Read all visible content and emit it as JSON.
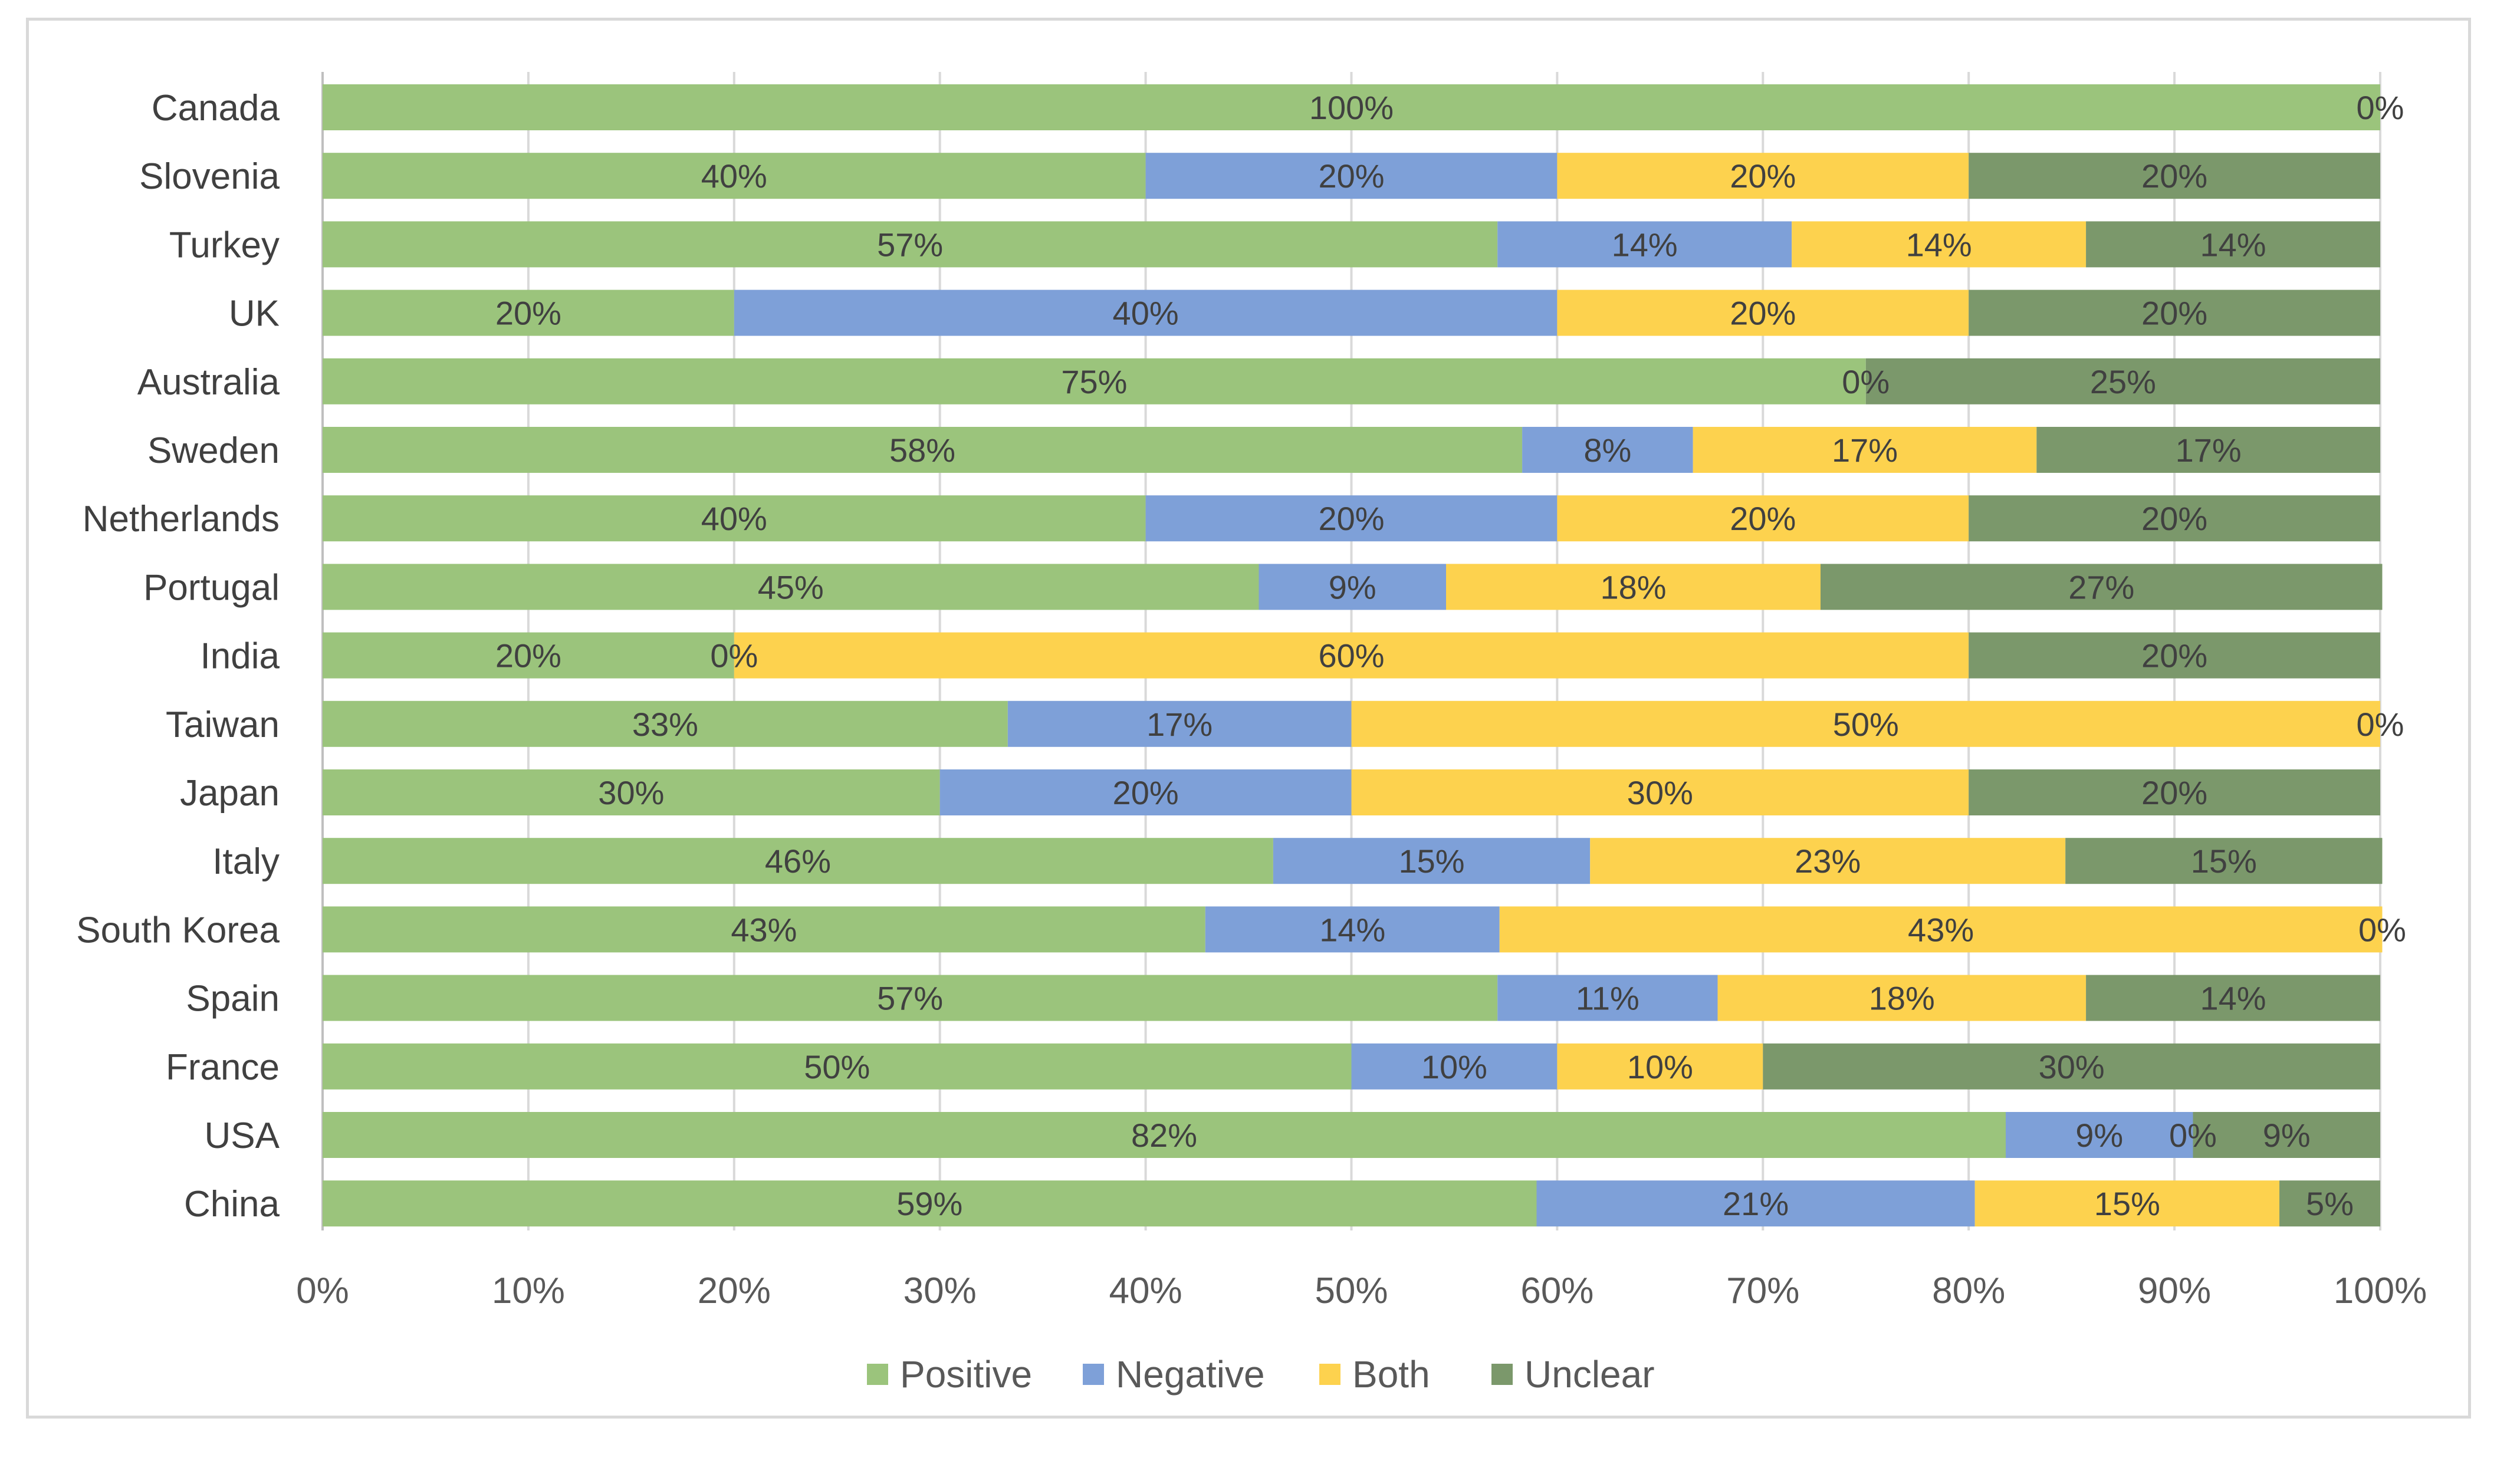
{
  "chart_data": {
    "type": "bar",
    "orientation": "horizontal",
    "stacked": true,
    "percent_stacked": true,
    "title": "",
    "xlabel": "",
    "ylabel": "",
    "xlim": [
      0,
      100
    ],
    "x_ticks": [
      0,
      10,
      20,
      30,
      40,
      50,
      60,
      70,
      80,
      90,
      100
    ],
    "x_tick_labels": [
      "0%",
      "10%",
      "20%",
      "30%",
      "40%",
      "50%",
      "60%",
      "70%",
      "80%",
      "90%",
      "100%"
    ],
    "grid": true,
    "legend_position": "bottom",
    "categories": [
      "Canada",
      "Slovenia",
      "Turkey",
      "UK",
      "Australia",
      "Sweden",
      "Netherlands",
      "Portugal",
      "India",
      "Taiwan",
      "Japan",
      "Italy",
      "South Korea",
      "Spain",
      "France",
      "USA",
      "China"
    ],
    "series": [
      {
        "name": "Positive",
        "color": "#9bc47c",
        "values": [
          100,
          40,
          57.1,
          20,
          75,
          58.3,
          40,
          45.5,
          20,
          33.3,
          30,
          46.2,
          42.9,
          57.1,
          50,
          81.8,
          59
        ],
        "labels": [
          "100%",
          "40%",
          "57%",
          "20%",
          "75%",
          "58%",
          "40%",
          "45%",
          "20%",
          "33%",
          "30%",
          "46%",
          "43%",
          "57%",
          "50%",
          "82%",
          "59%"
        ]
      },
      {
        "name": "Negative",
        "color": "#7ea0d8",
        "values": [
          0,
          20,
          14.3,
          40,
          0,
          8.3,
          20,
          9.1,
          0,
          16.7,
          20,
          15.4,
          14.3,
          10.7,
          10,
          9.1,
          21.3
        ],
        "labels": [
          "",
          "20%",
          "14%",
          "40%",
          "",
          "8%",
          "20%",
          "9%",
          "0%",
          "17%",
          "20%",
          "15%",
          "14%",
          "11%",
          "10%",
          "9%",
          "21%"
        ]
      },
      {
        "name": "Both",
        "color": "#fdd24e",
        "values": [
          0,
          20,
          14.3,
          20,
          0,
          16.7,
          20,
          18.2,
          60,
          50,
          30,
          23.1,
          42.9,
          17.9,
          10,
          0,
          14.8
        ],
        "labels": [
          "",
          "20%",
          "14%",
          "20%",
          "0%",
          "17%",
          "20%",
          "18%",
          "60%",
          "50%",
          "30%",
          "23%",
          "43%",
          "18%",
          "10%",
          "0%",
          "15%"
        ]
      },
      {
        "name": "Unclear",
        "color": "#7b986b",
        "values": [
          0,
          20,
          14.3,
          20,
          25,
          16.7,
          20,
          27.3,
          20,
          0,
          20,
          15.4,
          0,
          14.3,
          30,
          9.1,
          4.9
        ],
        "labels": [
          "0%",
          "20%",
          "14%",
          "20%",
          "25%",
          "17%",
          "20%",
          "27%",
          "20%",
          "0%",
          "20%",
          "15%",
          "0%",
          "14%",
          "30%",
          "9%",
          "5%"
        ]
      }
    ]
  }
}
